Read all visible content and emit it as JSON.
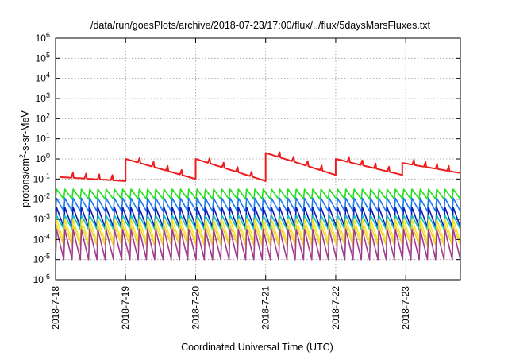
{
  "chart_data": {
    "type": "line",
    "title": "/data/run/goesPlots/archive/2018-07-23/17:00/flux/../flux/5daysMarsFluxes.txt",
    "xlabel": "Coordinated Universal Time (UTC)",
    "ylabel_main": "protons/cm",
    "ylabel_sup": "2",
    "ylabel_rest": "-s-sr-MeV",
    "yscale": "log",
    "ylim_exp": [
      -6,
      6
    ],
    "xlim": [
      0,
      5.78
    ],
    "grid": true,
    "x_ticks": [
      {
        "value": 0,
        "label": "2018-7-18"
      },
      {
        "value": 1,
        "label": "2018-7-19"
      },
      {
        "value": 2,
        "label": "2018-7-20"
      },
      {
        "value": 3,
        "label": "2018-7-21"
      },
      {
        "value": 4,
        "label": "2018-7-22"
      },
      {
        "value": 5,
        "label": "2018-7-23"
      }
    ],
    "y_ticks": [
      {
        "exp": 6,
        "base": "10",
        "sup": "6"
      },
      {
        "exp": 5,
        "base": "10",
        "sup": "5"
      },
      {
        "exp": 4,
        "base": "10",
        "sup": "4"
      },
      {
        "exp": 3,
        "base": "10",
        "sup": "3"
      },
      {
        "exp": 2,
        "base": "10",
        "sup": "2"
      },
      {
        "exp": 1,
        "base": "10",
        "sup": "1"
      },
      {
        "exp": 0,
        "base": "10",
        "sup": "0"
      },
      {
        "exp": -1,
        "base": "10",
        "sup": "-1"
      },
      {
        "exp": -2,
        "base": "10",
        "sup": "-2"
      },
      {
        "exp": -3,
        "base": "10",
        "sup": "-3"
      },
      {
        "exp": -4,
        "base": "10",
        "sup": "-4"
      },
      {
        "exp": -5,
        "base": "10",
        "sup": "-5"
      },
      {
        "exp": -6,
        "base": "10",
        "sup": "-6"
      }
    ],
    "series": [
      {
        "color": "#ee1c1c",
        "period": 1.0,
        "peaks": [
          0.06,
          1.0,
          2.0,
          3.0,
          4.0,
          4.95
        ],
        "log_peak": [
          -0.9,
          0.0,
          0.0,
          0.3,
          0.0,
          -0.2
        ],
        "log_trough": [
          -1.1,
          -1.0,
          -1.1,
          -0.8,
          -0.8,
          -0.7
        ],
        "sub_sawtooth": 0.25,
        "stroke": 2.0
      },
      {
        "color": "#22e01e",
        "period": 0.118,
        "log_peak": -1.5,
        "log_trough": -2.0,
        "stroke": 1.6
      },
      {
        "color": "#1e78f0",
        "period": 0.118,
        "log_peak": -1.95,
        "log_trough": -2.6,
        "stroke": 1.6
      },
      {
        "color": "#0a1eb4",
        "period": 0.118,
        "log_peak": -2.4,
        "log_trough": -3.4,
        "stroke": 1.6
      },
      {
        "color": "#16c0c0",
        "period": 0.118,
        "log_peak": -2.8,
        "log_trough": -3.5,
        "stroke": 1.6
      },
      {
        "color": "#f0e81e",
        "period": 0.118,
        "log_peak": -3.0,
        "log_trough": -4.1,
        "stroke": 1.6
      },
      {
        "color": "#f0c832",
        "period": 0.118,
        "log_peak": -3.3,
        "log_trough": -4.3,
        "stroke": 1.4
      },
      {
        "color": "#a03c8c",
        "period": 0.118,
        "log_peak": -3.5,
        "log_trough": -5.0,
        "stroke": 1.6
      }
    ]
  }
}
